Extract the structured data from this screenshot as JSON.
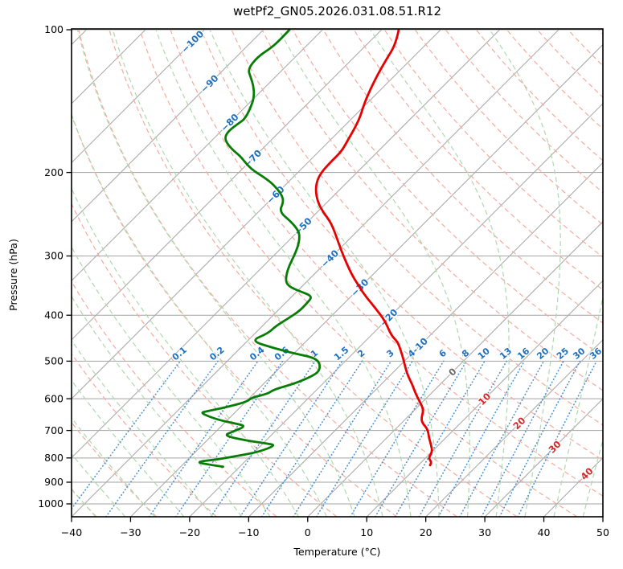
{
  "title": "wetPf2_GN05.2026.031.08.51.R12",
  "axes": {
    "x_label": "Temperature (°C)",
    "y_label": "Pressure (hPa)",
    "x_ticks": [
      -40,
      -30,
      -20,
      -10,
      0,
      10,
      20,
      30,
      40,
      50
    ],
    "y_ticks": [
      100,
      200,
      300,
      400,
      500,
      600,
      700,
      800,
      900,
      1000
    ]
  },
  "chart_data": {
    "type": "line",
    "variant": "skew-t-log-p",
    "title": "wetPf2_GN05.2026.031.08.51.R12",
    "xlabel": "Temperature (°C)",
    "ylabel": "Pressure (hPa)",
    "x_range_c": [
      -40,
      50
    ],
    "p_range_hpa": [
      100,
      1064
    ],
    "p_scale": "log",
    "series": [
      {
        "name": "temperature",
        "color": "#e60000",
        "points_p_t": [
          [
            100,
            -67.1
          ],
          [
            107,
            -65.2
          ],
          [
            116,
            -64.1
          ],
          [
            124,
            -63.1
          ],
          [
            133,
            -61.9
          ],
          [
            144,
            -60.3
          ],
          [
            155,
            -58.5
          ],
          [
            171,
            -57.0
          ],
          [
            180,
            -56.2
          ],
          [
            189,
            -56.2
          ],
          [
            198,
            -56.1
          ],
          [
            207,
            -55.5
          ],
          [
            218,
            -54.0
          ],
          [
            231,
            -51.6
          ],
          [
            242,
            -49.1
          ],
          [
            253,
            -46.4
          ],
          [
            263,
            -44.4
          ],
          [
            279,
            -41.6
          ],
          [
            291,
            -39.6
          ],
          [
            310,
            -36.5
          ],
          [
            330,
            -33.3
          ],
          [
            346,
            -30.6
          ],
          [
            364,
            -27.7
          ],
          [
            387,
            -23.8
          ],
          [
            411,
            -20.1
          ],
          [
            441,
            -16.6
          ],
          [
            456,
            -14.3
          ],
          [
            475,
            -12.4
          ],
          [
            495,
            -10.5
          ],
          [
            515,
            -8.8
          ],
          [
            538,
            -6.8
          ],
          [
            561,
            -4.6
          ],
          [
            584,
            -2.7
          ],
          [
            609,
            -0.5
          ],
          [
            633,
            1.5
          ],
          [
            661,
            2.6
          ],
          [
            677,
            3.7
          ],
          [
            696,
            5.5
          ],
          [
            726,
            7.2
          ],
          [
            749,
            8.6
          ],
          [
            776,
            10.1
          ],
          [
            800,
            10.5
          ],
          [
            816,
            11.7
          ],
          [
            829,
            12.0
          ]
        ]
      },
      {
        "name": "dewpoint",
        "color": "#077d07",
        "points_p_t": [
          [
            100,
            -85.6
          ],
          [
            104,
            -85.5
          ],
          [
            109,
            -85.6
          ],
          [
            114,
            -86.4
          ],
          [
            121,
            -86.0
          ],
          [
            126,
            -84.1
          ],
          [
            131,
            -82.3
          ],
          [
            137,
            -80.6
          ],
          [
            143,
            -79.4
          ],
          [
            154,
            -78.0
          ],
          [
            158,
            -78.4
          ],
          [
            164,
            -78.8
          ],
          [
            170,
            -78.1
          ],
          [
            178,
            -75.4
          ],
          [
            185,
            -72.4
          ],
          [
            193,
            -69.8
          ],
          [
            199,
            -67.5
          ],
          [
            205,
            -64.8
          ],
          [
            212,
            -62.1
          ],
          [
            223,
            -58.9
          ],
          [
            231,
            -57.4
          ],
          [
            242,
            -56.5
          ],
          [
            254,
            -52.8
          ],
          [
            265,
            -50.1
          ],
          [
            274,
            -48.7
          ],
          [
            287,
            -47.4
          ],
          [
            300,
            -46.5
          ],
          [
            314,
            -45.7
          ],
          [
            329,
            -44.6
          ],
          [
            342,
            -43.3
          ],
          [
            350,
            -41.6
          ],
          [
            357,
            -39.2
          ],
          [
            365,
            -36.5
          ],
          [
            378,
            -36.3
          ],
          [
            393,
            -36.3
          ],
          [
            408,
            -37.0
          ],
          [
            422,
            -37.7
          ],
          [
            437,
            -37.8
          ],
          [
            453,
            -39.5
          ],
          [
            469,
            -34.4
          ],
          [
            482,
            -29.8
          ],
          [
            488,
            -27.2
          ],
          [
            495,
            -25.3
          ],
          [
            507,
            -23.8
          ],
          [
            525,
            -22.7
          ],
          [
            538,
            -23.1
          ],
          [
            557,
            -24.7
          ],
          [
            574,
            -27.3
          ],
          [
            586,
            -27.6
          ],
          [
            597,
            -29.7
          ],
          [
            609,
            -29.8
          ],
          [
            626,
            -32.5
          ],
          [
            638,
            -35.0
          ],
          [
            643,
            -35.8
          ],
          [
            664,
            -31.8
          ],
          [
            677,
            -28.0
          ],
          [
            685,
            -25.8
          ],
          [
            704,
            -27.1
          ],
          [
            718,
            -28.0
          ],
          [
            735,
            -23.3
          ],
          [
            746,
            -19.3
          ],
          [
            752,
            -17.5
          ],
          [
            776,
            -19.2
          ],
          [
            791,
            -22.0
          ],
          [
            806,
            -25.0
          ],
          [
            813,
            -27.5
          ],
          [
            819,
            -27.6
          ],
          [
            826,
            -25.6
          ],
          [
            835,
            -22.8
          ]
        ]
      }
    ],
    "background": {
      "pressure_lines": {
        "color": "#a3a3a3",
        "values": [
          100,
          200,
          300,
          400,
          500,
          600,
          700,
          800,
          900,
          1000
        ]
      },
      "isotherms": {
        "color": "#ababab",
        "start_c": -130,
        "end_c": 50,
        "step_c": 10,
        "labels": [
          {
            "value": -100,
            "p": 106
          },
          {
            "value": -90,
            "p": 130
          },
          {
            "value": -80,
            "p": 157
          },
          {
            "value": -70,
            "p": 187
          },
          {
            "value": -60,
            "p": 223
          },
          {
            "value": -50,
            "p": 260
          },
          {
            "value": -40,
            "p": 304
          },
          {
            "value": -30,
            "p": 350
          },
          {
            "value": -20,
            "p": 405
          },
          {
            "value": -10,
            "p": 466
          },
          {
            "value": 0,
            "p": 527
          },
          {
            "value": 10,
            "p": 601
          },
          {
            "value": 20,
            "p": 676
          },
          {
            "value": 30,
            "p": 758
          },
          {
            "value": 40,
            "p": 864
          }
        ],
        "label_color_negative": "#1f6fbf",
        "label_color_zero": "#6a6a6a",
        "label_color_positive": "#d62728"
      },
      "dry_adiabats": {
        "color": "#f5ab9e",
        "theta_start_c": -40,
        "theta_end_c": 190,
        "step_c": 10
      },
      "moist_adiabats": {
        "color": "#aed9ae",
        "thetaw_start_c": -40,
        "thetaw_end_c": 45,
        "step_c": 5
      },
      "mixing_ratio_lines": {
        "color": "#4a90d2",
        "label_color": "#1f6fbf",
        "top_pressure": 500,
        "values_g_kg": [
          0.1,
          0.2,
          0.4,
          0.6,
          1,
          1.5,
          2,
          3,
          4,
          6,
          8,
          10,
          13,
          16,
          20,
          25,
          30,
          36
        ]
      }
    }
  }
}
